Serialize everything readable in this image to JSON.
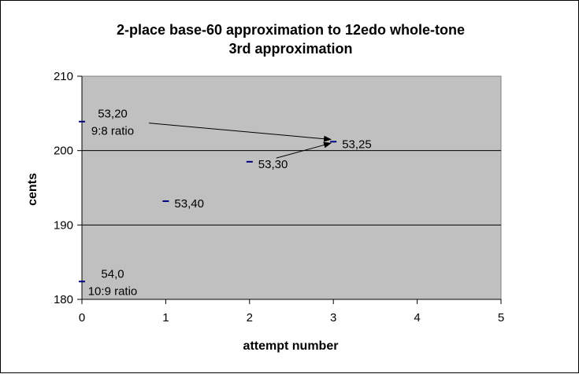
{
  "chart_data": {
    "type": "scatter",
    "title": "2-place base-60 approximation to 12edo whole-tone",
    "subtitle": "3rd approximation",
    "xlabel": "attempt number",
    "ylabel": "cents",
    "xlim": [
      0,
      5
    ],
    "ylim": [
      180,
      210
    ],
    "x_ticks": [
      0,
      1,
      2,
      3,
      4,
      5
    ],
    "y_ticks": [
      180,
      190,
      200,
      210
    ],
    "x_tick_labels": [
      "0",
      "1",
      "2",
      "3",
      "4",
      "5"
    ],
    "y_tick_labels": [
      "180",
      "190",
      "200",
      "210"
    ],
    "grid": "horizontal",
    "plot_background": "#C0C0C0",
    "marker_color": "#000080",
    "series": [
      {
        "points": [
          {
            "x": 0,
            "y": 203.9,
            "label": "53,20",
            "sublabel": "9:8 ratio"
          },
          {
            "x": 0,
            "y": 182.4,
            "label": "54,0",
            "sublabel": "10:9 ratio"
          },
          {
            "x": 1,
            "y": 193.2,
            "label": "53,40",
            "sublabel": ""
          },
          {
            "x": 2,
            "y": 198.5,
            "label": "53,30",
            "sublabel": ""
          },
          {
            "x": 3,
            "y": 201.2,
            "label": "53,25",
            "sublabel": ""
          }
        ]
      }
    ],
    "arrows": [
      {
        "from": [
          0.8,
          203.7
        ],
        "to": [
          2.97,
          201.5
        ]
      },
      {
        "from": [
          2.32,
          199.0
        ],
        "to": [
          2.97,
          201.0
        ]
      }
    ]
  }
}
